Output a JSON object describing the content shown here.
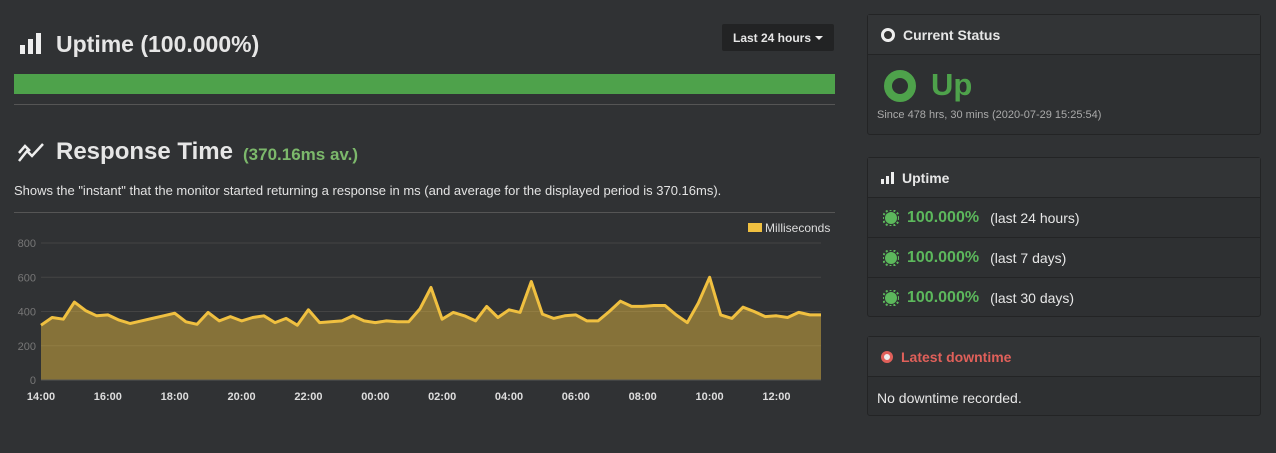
{
  "uptime_header": {
    "title": "Uptime (100.000%)",
    "period_button": "Last 24 hours"
  },
  "response_time": {
    "title": "Response Time",
    "average": "(370.16ms av.)",
    "description": "Shows the \"instant\" that the monitor started returning a response in ms (and average for the displayed period is 370.16ms).",
    "chart_data": {
      "type": "area",
      "categories": [
        "14:00",
        null,
        null,
        null,
        null,
        null,
        "16:00",
        null,
        null,
        null,
        null,
        null,
        "18:00",
        null,
        null,
        null,
        null,
        null,
        "20:00",
        null,
        null,
        null,
        null,
        null,
        "22:00",
        null,
        null,
        null,
        null,
        null,
        "00:00",
        null,
        null,
        null,
        null,
        null,
        "02:00",
        null,
        null,
        null,
        null,
        null,
        "04:00",
        null,
        null,
        null,
        null,
        null,
        "06:00",
        null,
        null,
        null,
        null,
        null,
        "08:00",
        null,
        null,
        null,
        null,
        null,
        "10:00",
        null,
        null,
        null,
        null,
        null,
        "12:00",
        null,
        null,
        null,
        null
      ],
      "series": [
        {
          "name": "Milliseconds",
          "color": "#f0c040",
          "values": [
            320,
            365,
            355,
            455,
            405,
            375,
            380,
            350,
            330,
            345,
            360,
            375,
            390,
            340,
            325,
            395,
            345,
            370,
            345,
            365,
            375,
            335,
            360,
            320,
            410,
            335,
            340,
            345,
            375,
            345,
            335,
            345,
            340,
            340,
            415,
            540,
            355,
            395,
            375,
            345,
            430,
            365,
            410,
            395,
            575,
            385,
            360,
            375,
            380,
            345,
            345,
            400,
            460,
            430,
            430,
            435,
            435,
            380,
            335,
            450,
            600,
            380,
            360,
            425,
            400,
            370,
            375,
            365,
            395,
            380,
            380
          ]
        }
      ],
      "ylim": [
        0,
        800
      ],
      "yticks": [
        0,
        200,
        400,
        600,
        800
      ],
      "grid": true,
      "legend": "top-right"
    }
  },
  "current_status": {
    "title": "Current Status",
    "status": "Up",
    "since": "Since 478 hrs, 30 mins (2020-07-29 15:25:54)"
  },
  "uptime_panel": {
    "title": "Uptime",
    "rows": [
      {
        "percent": "100.000%",
        "period": "(last 24 hours)"
      },
      {
        "percent": "100.000%",
        "period": "(last 7 days)"
      },
      {
        "percent": "100.000%",
        "period": "(last 30 days)"
      }
    ]
  },
  "latest_downtime": {
    "title": "Latest downtime",
    "message": "No downtime recorded."
  }
}
